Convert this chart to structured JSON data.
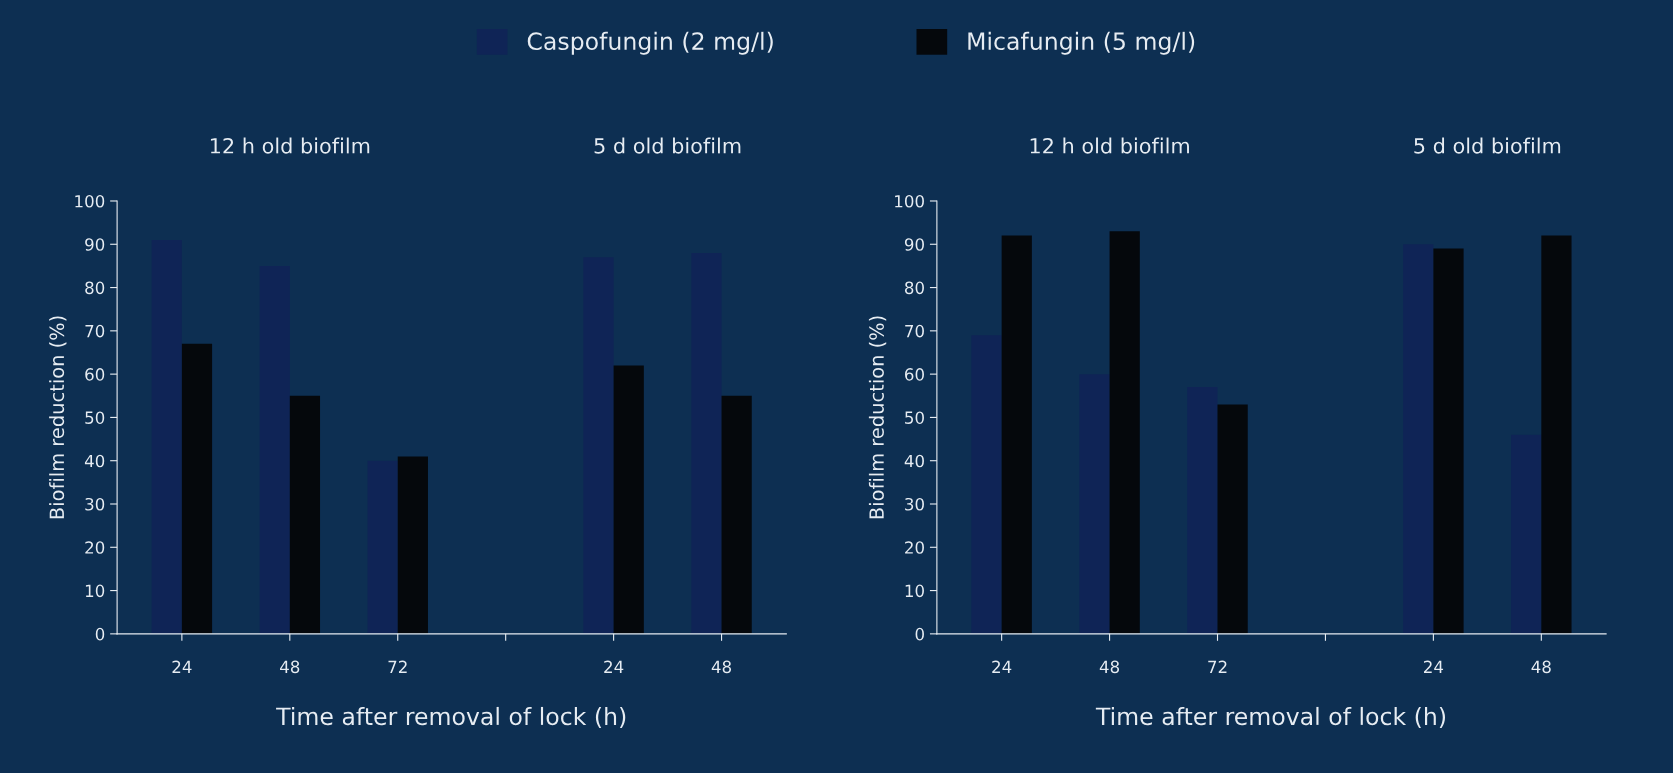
{
  "chart_data": [
    {
      "type": "bar",
      "categories": [
        "24",
        "48",
        "72",
        null,
        "24",
        "48"
      ],
      "ylabel": "Biofilm reduction (%)",
      "xlabel": "Time after removal of lock (h)",
      "ylim": [
        0,
        100
      ],
      "yticks": [
        0,
        10,
        20,
        30,
        40,
        50,
        60,
        70,
        80,
        90,
        100
      ],
      "legend": "top",
      "grid": false,
      "annotations": [
        "12 h old biofilm",
        "5 d old biofilm"
      ],
      "series": [
        {
          "name": "Caspofungin (2 mg/l)",
          "color": "#0f2456",
          "values": [
            91,
            85,
            40,
            null,
            87,
            88
          ]
        },
        {
          "name": "Micafungin (5 mg/l)",
          "color": "#05080c",
          "values": [
            67,
            55,
            41,
            null,
            62,
            55
          ]
        }
      ]
    },
    {
      "type": "bar",
      "categories": [
        "24",
        "48",
        "72",
        null,
        "24",
        "48"
      ],
      "ylabel": "Biofilm reduction (%)",
      "xlabel": "Time after removal of lock (h)",
      "ylim": [
        0,
        100
      ],
      "yticks": [
        0,
        10,
        20,
        30,
        40,
        50,
        60,
        70,
        80,
        90,
        100
      ],
      "grid": false,
      "annotations": [
        "12 h old biofilm",
        "5 d old biofilm"
      ],
      "series": [
        {
          "color": "#0f2456",
          "values": [
            69,
            60,
            57,
            null,
            90,
            46
          ]
        },
        {
          "color": "#05080c",
          "values": [
            92,
            93,
            53,
            null,
            89,
            92
          ]
        }
      ]
    }
  ]
}
